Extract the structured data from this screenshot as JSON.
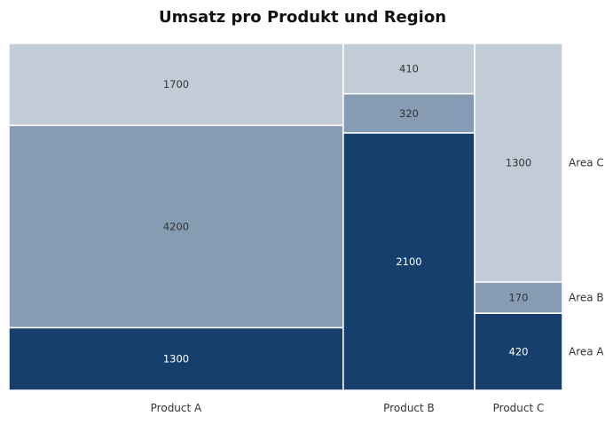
{
  "chart_data": {
    "type": "mosaic",
    "title": "Umsatz pro Produkt und Region",
    "categories": [
      "Product A",
      "Product B",
      "Product C"
    ],
    "series": [
      {
        "name": "Area A",
        "values": [
          1300,
          2100,
          420
        ]
      },
      {
        "name": "Area B",
        "values": [
          4200,
          320,
          170
        ]
      },
      {
        "name": "Area C",
        "values": [
          1700,
          410,
          1300
        ]
      }
    ],
    "xlabel": "",
    "ylabel": "",
    "legend_position": "right",
    "grid": false
  },
  "colors": {
    "Area A": "#173f6e",
    "Area B": "#869cb3",
    "Area C": "#c1ccd7",
    "label_dark_bg": "#ffffff",
    "label_light_bg": "#333333",
    "separator": "#ffffff",
    "background": "#ffffff"
  }
}
